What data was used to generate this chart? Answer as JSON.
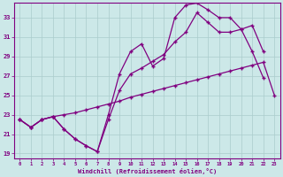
{
  "xlabel": "Windchill (Refroidissement éolien,°C)",
  "bg_color": "#cce8e8",
  "line_color": "#800080",
  "grid_color": "#aacccc",
  "xlim": [
    -0.5,
    23.5
  ],
  "ylim": [
    18.5,
    34.5
  ],
  "yticks": [
    19,
    21,
    23,
    25,
    27,
    29,
    31,
    33
  ],
  "xticks": [
    0,
    1,
    2,
    3,
    4,
    5,
    6,
    7,
    8,
    9,
    10,
    11,
    12,
    13,
    14,
    15,
    16,
    17,
    18,
    19,
    20,
    21,
    22,
    23
  ],
  "series1_x": [
    0,
    1,
    2,
    3,
    4,
    5,
    6,
    7,
    8,
    9,
    10,
    11,
    12,
    13,
    14,
    15,
    16,
    17,
    18,
    19,
    20,
    21,
    22,
    23
  ],
  "series1_y": [
    22.5,
    21.7,
    22.5,
    22.8,
    23.0,
    23.2,
    23.5,
    23.8,
    24.1,
    24.4,
    24.8,
    25.1,
    25.4,
    25.7,
    26.0,
    26.3,
    26.6,
    26.9,
    27.2,
    27.5,
    27.8,
    28.1,
    28.4,
    25.0
  ],
  "series2_x": [
    0,
    1,
    2,
    3,
    4,
    5,
    6,
    7,
    8,
    9,
    10,
    11,
    12,
    13,
    14,
    15,
    16,
    17,
    18,
    19,
    20,
    21,
    22
  ],
  "series2_y": [
    22.5,
    21.7,
    22.5,
    22.8,
    21.5,
    20.5,
    19.8,
    19.2,
    23.0,
    27.2,
    29.5,
    30.3,
    28.0,
    28.8,
    33.0,
    34.3,
    34.5,
    33.8,
    33.0,
    33.0,
    31.8,
    29.5,
    26.8
  ],
  "series3_x": [
    0,
    1,
    2,
    3,
    4,
    5,
    6,
    7,
    8,
    9,
    10,
    11,
    12,
    13,
    14,
    15,
    16,
    17,
    18,
    19,
    20,
    21,
    22
  ],
  "series3_y": [
    22.5,
    21.7,
    22.5,
    22.8,
    21.5,
    20.5,
    19.8,
    19.2,
    22.5,
    25.5,
    27.2,
    27.8,
    28.5,
    29.2,
    30.5,
    31.5,
    33.5,
    32.5,
    31.5,
    31.5,
    31.8,
    32.2,
    29.5
  ]
}
